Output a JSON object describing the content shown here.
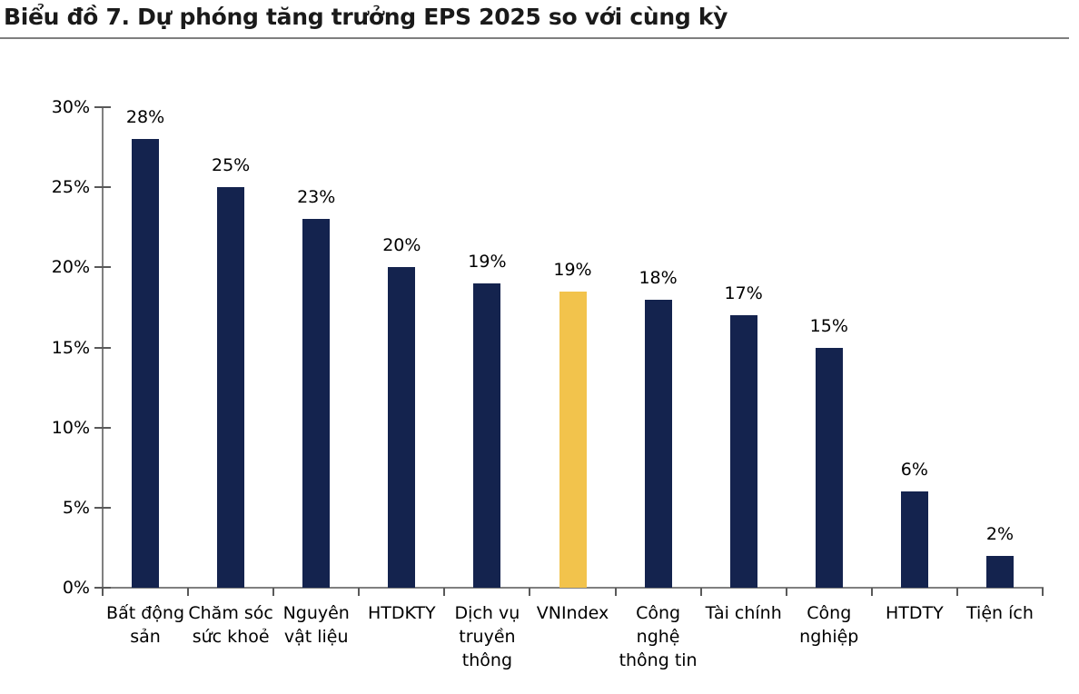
{
  "page": {
    "title": "Biểu đồ 7. Dự phóng tăng trưởng EPS 2025 so với cùng kỳ"
  },
  "colors": {
    "bar": "#14234E",
    "highlight_bar": "#F2C34C",
    "axis_line": "#808080",
    "tick_mark": "#595959",
    "label_text": "#000000",
    "title_text": "#1A1A1A",
    "title_rule": "#7F7F7F",
    "background": "#FFFFFF"
  },
  "chart_data": {
    "type": "bar",
    "title": "Biểu đồ 7. Dự phóng tăng trưởng EPS 2025 so với cùng kỳ",
    "xlabel": "",
    "ylabel": "",
    "ylim": [
      0,
      30
    ],
    "y_tick_interval": 5,
    "y_tick_labels": [
      "0%",
      "5%",
      "10%",
      "15%",
      "20%",
      "25%",
      "30%"
    ],
    "grid": "off",
    "legend": "none",
    "categories": [
      "Bất động sản",
      "Chăm sóc sức khoẻ",
      "Nguyên vật liệu",
      "HTDKTY",
      "Dịch vụ truyền thông",
      "VNIndex",
      "Công nghệ thông tin",
      "Tài chính",
      "Công nghiệp",
      "HTDTY",
      "Tiện ích"
    ],
    "categories_wrapped": [
      "Bất động\nsản",
      "Chăm sóc\nsức khoẻ",
      "Nguyên\nvật liệu",
      "HTDKTY",
      "Dịch vụ\ntruyền\nthông",
      "VNIndex",
      "Công\nnghệ\nthông tin",
      "Tài chính",
      "Công\nnghiệp",
      "HTDTY",
      "Tiện ích"
    ],
    "values": [
      28,
      25,
      23,
      20,
      19,
      18.5,
      18,
      17,
      15,
      6,
      2
    ],
    "value_labels": [
      "28%",
      "25%",
      "23%",
      "20%",
      "19%",
      "19%",
      "18%",
      "17%",
      "15%",
      "6%",
      "2%"
    ],
    "highlight_index": 5,
    "highlight_series": "VNIndex"
  }
}
